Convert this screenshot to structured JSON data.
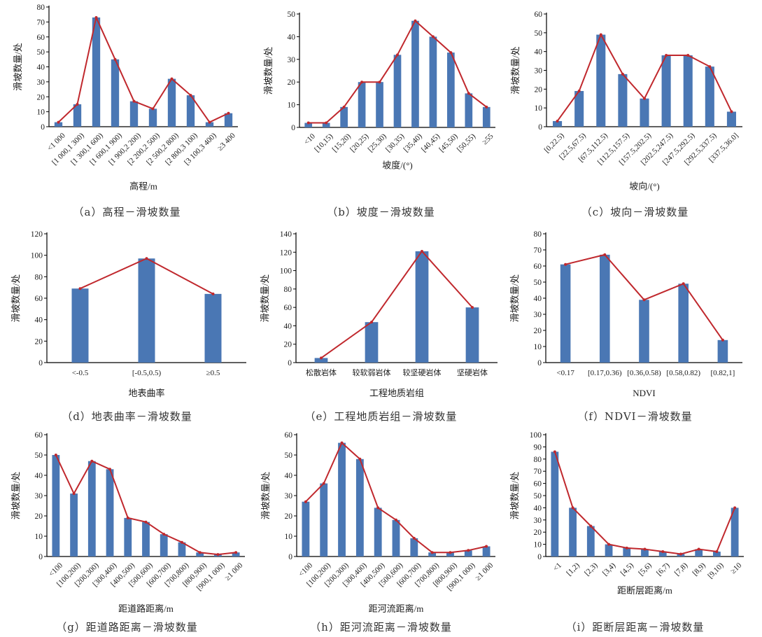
{
  "colors": {
    "bar": "#4a77b4",
    "line": "#c0282d",
    "axis": "#000000"
  },
  "chart_data": [
    {
      "id": "a",
      "type": "bar+line",
      "caption": "（a）高程－滑坡数量",
      "xlabel": "高程/m",
      "ylabel": "滑坡数量/处",
      "ylim": [
        0,
        80
      ],
      "yticks": [
        0,
        10,
        20,
        30,
        40,
        50,
        60,
        70,
        80
      ],
      "rotate_labels": true,
      "categories": [
        "<1 000",
        "[1 000,1 300)",
        "[1 300,1 600)",
        "[1 600,1 900)",
        "[1 900,2 200)",
        "[2 200,2 500)",
        "[2 500,2 800)",
        "[2 800,3 100)",
        "[3 100,3 400)",
        "≥3 400"
      ],
      "values": [
        3,
        15,
        73,
        45,
        17,
        12,
        32,
        21,
        3,
        9
      ]
    },
    {
      "id": "b",
      "type": "bar+line",
      "caption": "（b）坡度－滑坡数量",
      "xlabel": "坡度/(°)",
      "ylabel": "滑坡数量/处",
      "ylim": [
        0,
        50
      ],
      "yticks": [
        0,
        10,
        20,
        30,
        40,
        50
      ],
      "rotate_labels": true,
      "categories": [
        "<10",
        "[10,15)",
        "[15,20)",
        "[20,25)",
        "[25,30)",
        "[30,35)",
        "[35,40)",
        "[40,45)",
        "[45,50)",
        "[50,55)",
        "≥55"
      ],
      "values": [
        2,
        2,
        9,
        20,
        20,
        32,
        47,
        40,
        33,
        15,
        9
      ]
    },
    {
      "id": "c",
      "type": "bar+line",
      "caption": "（c）坡向－滑坡数量",
      "xlabel": "坡向/(°)",
      "ylabel": "滑坡数量/处",
      "ylim": [
        0,
        60
      ],
      "yticks": [
        0,
        10,
        20,
        30,
        40,
        50,
        60
      ],
      "rotate_labels": true,
      "categories": [
        "[0,22.5)",
        "[22.5,67.5)",
        "[67.5,112.5)",
        "[112.5,157.5)",
        "[157.5,202.5)",
        "[202.5,247.5)",
        "[247.5,292.5)",
        "[292.5,337.5)",
        "[337.5,36.0]"
      ],
      "values": [
        3,
        19,
        49,
        28,
        15,
        38,
        38,
        32,
        8
      ]
    },
    {
      "id": "d",
      "type": "bar+line",
      "caption": "（d）地表曲率－滑坡数量",
      "xlabel": "地表曲率",
      "ylabel": "滑坡数量/处",
      "ylim": [
        0,
        120
      ],
      "yticks": [
        0,
        20,
        40,
        60,
        80,
        100,
        120
      ],
      "rotate_labels": false,
      "categories": [
        "<-0.5",
        "[-0.5,0.5)",
        "≥0.5"
      ],
      "values": [
        69,
        97,
        64
      ]
    },
    {
      "id": "e",
      "type": "bar+line",
      "caption": "（e）工程地质岩组－滑坡数量",
      "xlabel": "工程地质岩组",
      "ylabel": "滑坡数量/处",
      "ylim": [
        0,
        140
      ],
      "yticks": [
        0,
        20,
        40,
        60,
        80,
        100,
        120,
        140
      ],
      "rotate_labels": false,
      "categories": [
        "松散岩体",
        "较软弱岩体",
        "较坚硬岩体",
        "坚硬岩体"
      ],
      "values": [
        5,
        44,
        121,
        60
      ]
    },
    {
      "id": "f",
      "type": "bar+line",
      "caption": "（f）NDVI－滑坡数量",
      "xlabel": "NDVI",
      "ylabel": "滑坡数量/处",
      "ylim": [
        0,
        80
      ],
      "yticks": [
        0,
        10,
        20,
        30,
        40,
        50,
        60,
        70,
        80
      ],
      "rotate_labels": false,
      "categories": [
        "<0.17",
        "[0.17,0.36)",
        "[0.36,0.58)",
        "[0.58,0.82)",
        "[0.82,1]"
      ],
      "values": [
        61,
        67,
        39,
        49,
        14
      ]
    },
    {
      "id": "g",
      "type": "bar+line",
      "caption": "（g）距道路距离－滑坡数量",
      "xlabel": "距道路距离/m",
      "ylabel": "滑坡数量/处",
      "ylim": [
        0,
        60
      ],
      "yticks": [
        0,
        10,
        20,
        30,
        40,
        50,
        60
      ],
      "rotate_labels": true,
      "categories": [
        "<100",
        "[100,200)",
        "[200,300)",
        "[300,400)",
        "[400,500)",
        "[500,600)",
        "[600,700)",
        "[700,800)",
        "[800,900)",
        "[900,1 000)",
        "≥1 000"
      ],
      "values": [
        50,
        31,
        47,
        43,
        19,
        17,
        11,
        7,
        2,
        1,
        2
      ]
    },
    {
      "id": "h",
      "type": "bar+line",
      "caption": "（h）距河流距离－滑坡数量",
      "xlabel": "距河流距离/m",
      "ylabel": "滑坡数量/处",
      "ylim": [
        0,
        60
      ],
      "yticks": [
        0,
        10,
        20,
        30,
        40,
        50,
        60
      ],
      "rotate_labels": true,
      "categories": [
        "<100",
        "[100,200)",
        "[200,300)",
        "[300,400)",
        "[400,500)",
        "[500,600)",
        "[600,700)",
        "[700,800)",
        "[800,900)",
        "[900,1 000)",
        "≥1 000"
      ],
      "values": [
        27,
        36,
        56,
        48,
        24,
        18,
        9,
        2,
        2,
        3,
        5
      ]
    },
    {
      "id": "i",
      "type": "bar+line",
      "caption": "（i）距断层距离－滑坡数量",
      "xlabel": "距断层距离/m",
      "ylabel": "滑坡数量/处",
      "ylim": [
        0,
        100
      ],
      "yticks": [
        0,
        10,
        20,
        30,
        40,
        50,
        60,
        70,
        80,
        90,
        100
      ],
      "rotate_labels": true,
      "categories": [
        "<1",
        "[1,2)",
        "[2,3)",
        "[3,4)",
        "[4,5)",
        "[5,6)",
        "[6,7)",
        "[7,8)",
        "[8,9)",
        "[9,10)",
        "≥10"
      ],
      "values": [
        86,
        40,
        25,
        10,
        7,
        6,
        4,
        2,
        6,
        4,
        40
      ]
    }
  ]
}
